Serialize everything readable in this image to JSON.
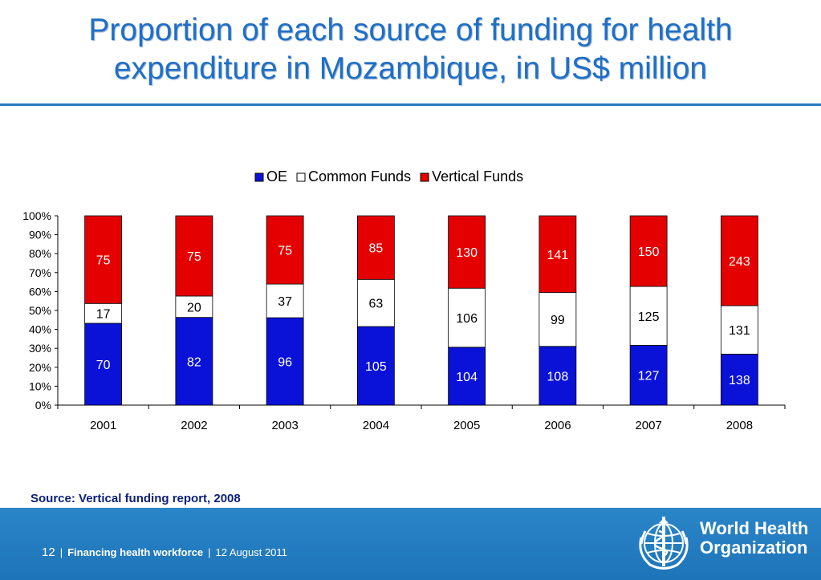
{
  "slide": {
    "title_line1": "Proportion of each source of funding for health",
    "title_line2": "expenditure in Mozambique, in US$ million",
    "source_note": "Source:  Vertical funding report, 2008"
  },
  "footer": {
    "page_number": "12",
    "separator": "|",
    "course_title": "Financing health workforce",
    "date": "12 August 2011"
  },
  "brand": {
    "org_line1": "World Health",
    "org_line2": "Organization",
    "colors": {
      "band": "#1e74b8",
      "title": "#1f6fc6"
    }
  },
  "chart_data": {
    "type": "bar",
    "stacked": "percent",
    "categories": [
      "2001",
      "2002",
      "2003",
      "2004",
      "2005",
      "2006",
      "2007",
      "2008"
    ],
    "series": [
      {
        "name": "OE",
        "color": "#0b12d8",
        "values": [
          70,
          82,
          96,
          105,
          104,
          108,
          127,
          138
        ]
      },
      {
        "name": "Common Funds",
        "color": "#ffffff",
        "values": [
          17,
          20,
          37,
          63,
          106,
          99,
          125,
          131
        ]
      },
      {
        "name": "Vertical Funds",
        "color": "#e50000",
        "values": [
          75,
          75,
          75,
          85,
          130,
          141,
          150,
          243
        ]
      }
    ],
    "yticks": [
      "0%",
      "10%",
      "20%",
      "30%",
      "40%",
      "50%",
      "60%",
      "70%",
      "80%",
      "90%",
      "100%"
    ],
    "ylim": [
      0,
      100
    ],
    "legend": "top",
    "grid": false
  }
}
